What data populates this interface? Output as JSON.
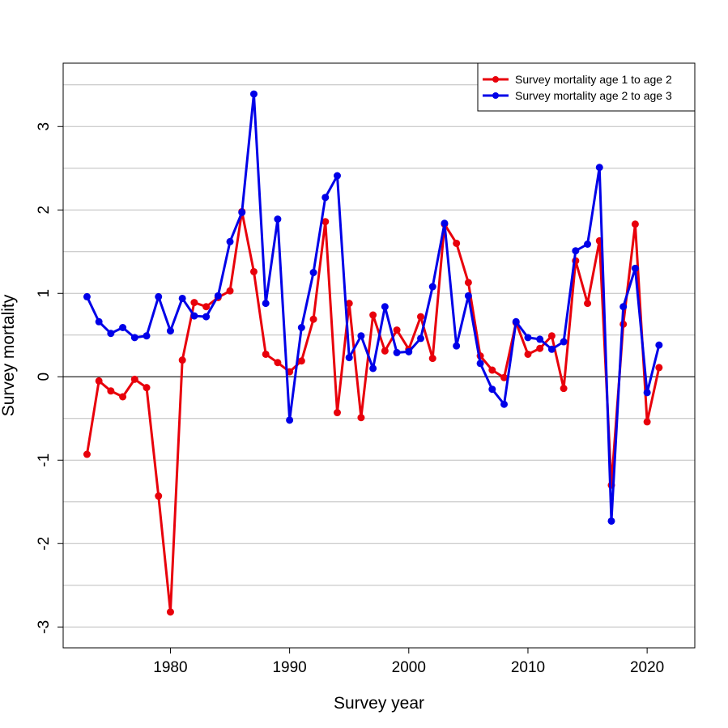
{
  "chart_data": {
    "type": "line",
    "title": "",
    "xlabel": "Survey year",
    "ylabel": "Survey mortality",
    "xlim": [
      1971,
      2024
    ],
    "ylim": [
      -3.25,
      3.76
    ],
    "x_ticks": [
      1980,
      1990,
      2000,
      2010,
      2020
    ],
    "y_ticks": [
      -3,
      -2,
      -1,
      0,
      1,
      2,
      3
    ],
    "grid": "horizontal every 0.5",
    "reference_line": 0,
    "legend_position": "top-right",
    "x": [
      1973,
      1974,
      1975,
      1976,
      1977,
      1978,
      1979,
      1980,
      1981,
      1982,
      1983,
      1984,
      1985,
      1986,
      1987,
      1988,
      1989,
      1990,
      1991,
      1992,
      1993,
      1994,
      1995,
      1996,
      1997,
      1998,
      1999,
      2000,
      2001,
      2002,
      2003,
      2004,
      2005,
      2006,
      2007,
      2008,
      2009,
      2010,
      2011,
      2012,
      2013,
      2014,
      2015,
      2016,
      2017,
      2018,
      2019,
      2020,
      2021
    ],
    "series": [
      {
        "name": "Survey mortality age 1 to age 2",
        "color": "#e8000b",
        "values": [
          -0.93,
          -0.05,
          -0.17,
          -0.24,
          -0.03,
          -0.13,
          -1.43,
          -2.82,
          0.2,
          0.89,
          0.84,
          0.95,
          1.03,
          1.98,
          1.26,
          0.27,
          0.17,
          0.06,
          0.19,
          0.69,
          1.86,
          -0.43,
          0.88,
          -0.49,
          0.74,
          0.31,
          0.56,
          0.33,
          0.72,
          0.22,
          1.83,
          1.6,
          1.13,
          0.25,
          0.08,
          -0.01,
          0.65,
          0.27,
          0.34,
          0.49,
          -0.14,
          1.39,
          0.88,
          1.63,
          -1.3,
          0.63,
          1.83,
          -0.54,
          0.11
        ]
      },
      {
        "name": "Survey mortality age 2 to age 3",
        "color": "#0000e8",
        "values": [
          0.96,
          0.66,
          0.52,
          0.59,
          0.47,
          0.49,
          0.96,
          0.55,
          0.94,
          0.73,
          0.72,
          0.97,
          1.62,
          1.97,
          3.39,
          0.88,
          1.89,
          -0.52,
          0.59,
          1.25,
          2.15,
          2.41,
          0.23,
          0.49,
          0.1,
          0.84,
          0.29,
          0.3,
          0.46,
          1.08,
          1.84,
          0.37,
          0.97,
          0.16,
          -0.15,
          -0.33,
          0.66,
          0.47,
          0.45,
          0.33,
          0.42,
          1.51,
          1.59,
          2.51,
          -1.73,
          0.84,
          1.3,
          -0.19,
          0.38
        ]
      }
    ]
  }
}
